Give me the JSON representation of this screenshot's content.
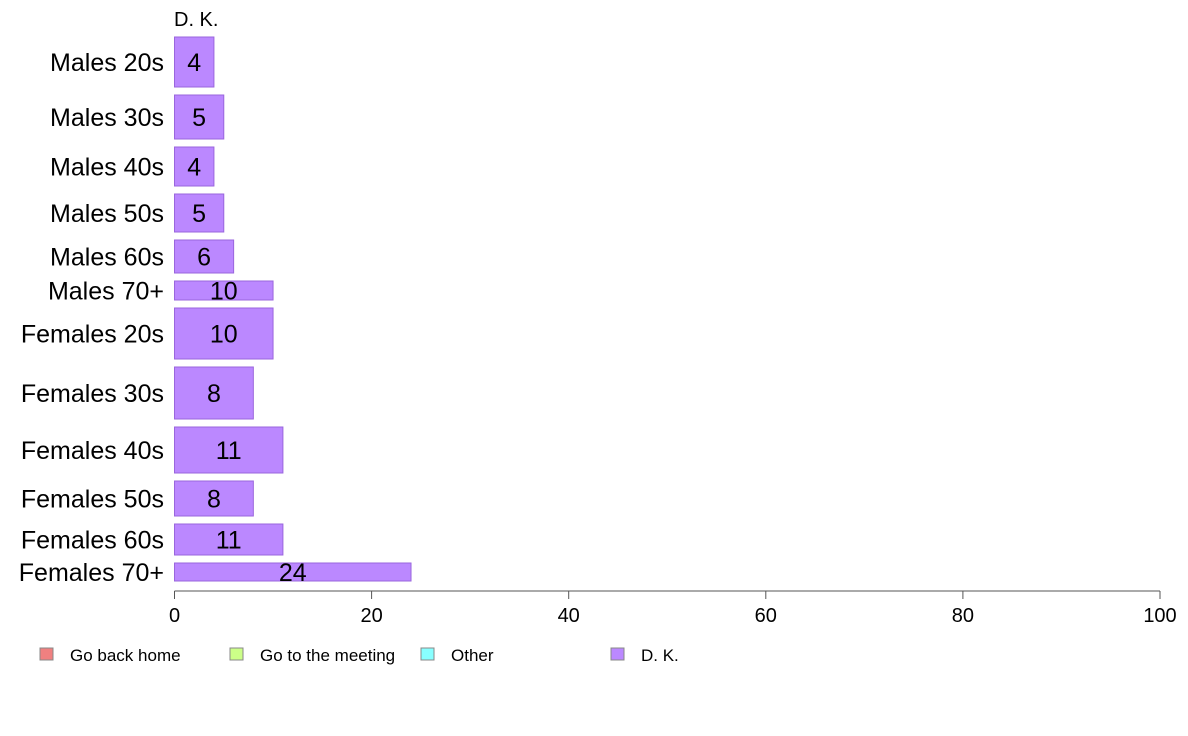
{
  "chart_data": {
    "type": "bar",
    "orientation": "horizontal",
    "panel_title": "D. K.",
    "categories": [
      "Males 20s",
      "Males 30s",
      "Males 40s",
      "Males 50s",
      "Males 60s",
      "Males 70+",
      "Females 20s",
      "Females 30s",
      "Females 40s",
      "Females 50s",
      "Females 60s",
      "Females 70+"
    ],
    "series": [
      {
        "name": "D. K.",
        "color": "#bb88ff",
        "values": [
          4,
          5,
          4,
          5,
          6,
          10,
          10,
          8,
          11,
          8,
          11,
          24
        ]
      }
    ],
    "xlim": [
      0,
      100
    ],
    "xticks": [
      0,
      20,
      40,
      60,
      80,
      100
    ],
    "grid": false,
    "legend": {
      "position": "bottom",
      "items": [
        {
          "label": "Go back home",
          "color": "#f08080"
        },
        {
          "label": "Go to the meeting",
          "color": "#ccff88"
        },
        {
          "label": "Other",
          "color": "#88ffff"
        },
        {
          "label": "D. K.",
          "color": "#bb88ff"
        }
      ]
    }
  }
}
